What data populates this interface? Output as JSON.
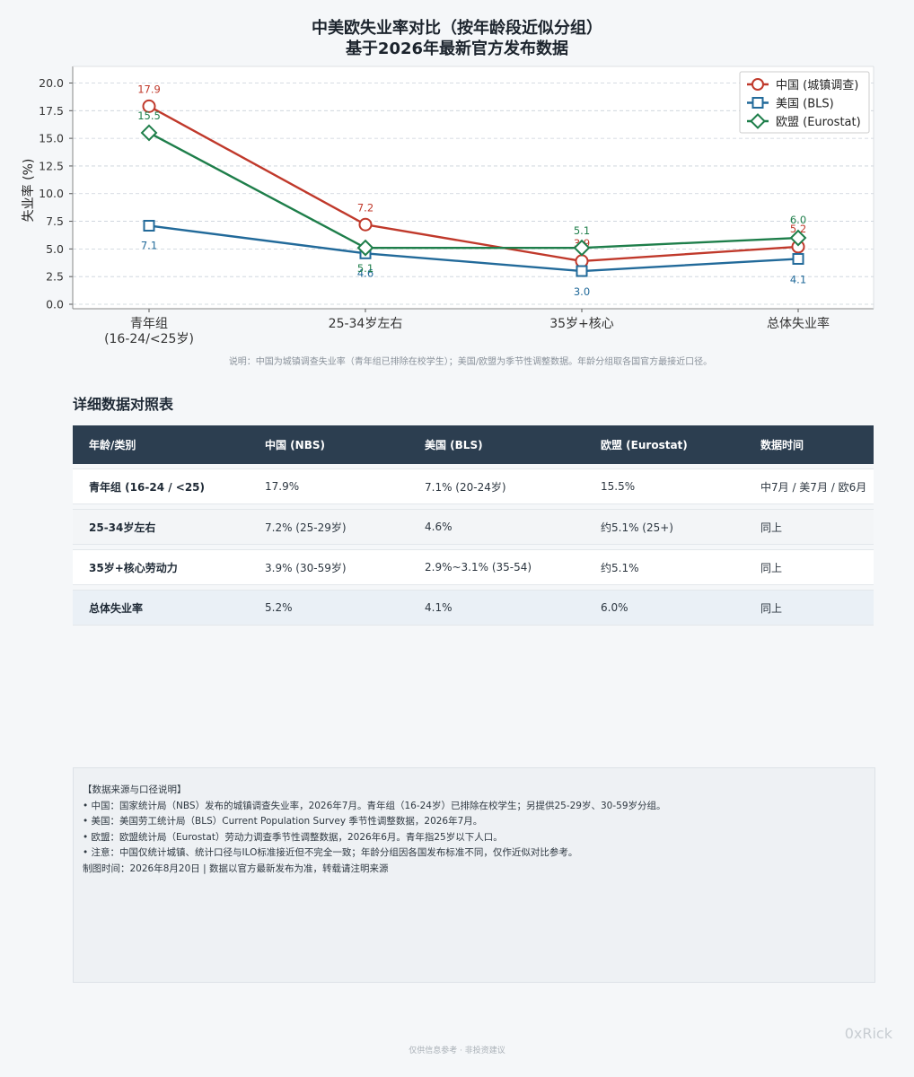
{
  "chart": {
    "title_line1": "中美欧失业率对比（按年龄段近似分组）",
    "title_line2": "基于2026年最新官方发布数据",
    "note": "说明：中国为城镇调查失业率（青年组已排除在校学生）；美国/欧盟为季节性调整数据。年龄分组取各国官方最接近口径。"
  },
  "chart_data": {
    "type": "line",
    "categories": [
      "青年组\n(16-24/<25岁)",
      "25-34岁左右",
      "35岁+核心",
      "总体失业率"
    ],
    "series": [
      {
        "name": "中国 (城镇调查)",
        "values": [
          17.9,
          7.2,
          3.9,
          5.2
        ],
        "color": "#c0392b",
        "marker": "circle"
      },
      {
        "name": "美国 (BLS)",
        "values": [
          7.1,
          4.6,
          3.0,
          4.1
        ],
        "color": "#226a9a",
        "marker": "square"
      },
      {
        "name": "欧盟 (Eurostat)",
        "values": [
          15.5,
          5.1,
          5.1,
          6.0
        ],
        "color": "#1e7e4a",
        "marker": "diamond"
      }
    ],
    "ylabel": "失业率 (%)",
    "xlabel": "",
    "ylim": [
      0,
      21.5
    ],
    "yticks": [
      "0.0",
      "2.5",
      "5.0",
      "7.5",
      "10.0",
      "12.5",
      "15.0",
      "17.5",
      "20.0"
    ],
    "grid": true,
    "legend": "top-right",
    "data_labels": true
  },
  "table": {
    "title": "详细数据对照表",
    "headers": [
      "年龄/类别",
      "中国 (NBS)",
      "美国 (BLS)",
      "欧盟 (Eurostat)",
      "数据时间"
    ],
    "rows": [
      [
        "青年组 (16-24 / <25)",
        "17.9%",
        "7.1% (20-24岁)",
        "15.5%",
        "中7月 / 美7月 / 欧6月"
      ],
      [
        "25-34岁左右",
        "7.2% (25-29岁)",
        "4.6%",
        "约5.1% (25+)",
        "同上"
      ],
      [
        "35岁+核心劳动力",
        "3.9% (30-59岁)",
        "2.9%~3.1% (35-54)",
        "约5.1%",
        "同上"
      ],
      [
        "总体失业率",
        "5.2%",
        "4.1%",
        "6.0%",
        "同上"
      ]
    ]
  },
  "sources": {
    "heading": "【数据来源与口径说明】",
    "lines": [
      "• 中国：国家统计局（NBS）发布的城镇调查失业率，2026年7月。青年组（16-24岁）已排除在校学生；另提供25-29岁、30-59岁分组。",
      "• 美国：美国劳工统计局（BLS）Current Population Survey 季节性调整数据，2026年7月。",
      "• 欧盟：欧盟统计局（Eurostat）劳动力调查季节性调整数据，2026年6月。青年指25岁以下人口。",
      "• 注意：中国仅统计城镇、统计口径与ILO标准接近但不完全一致；年龄分组因各国发布标准不同，仅作近似对比参考。"
    ],
    "footer_line": "制图时间：2026年8月20日 | 数据以官方最新发布为准，转载请注明来源"
  },
  "watermark": "0xRick",
  "footer": "仅供信息参考 · 非投资建议"
}
